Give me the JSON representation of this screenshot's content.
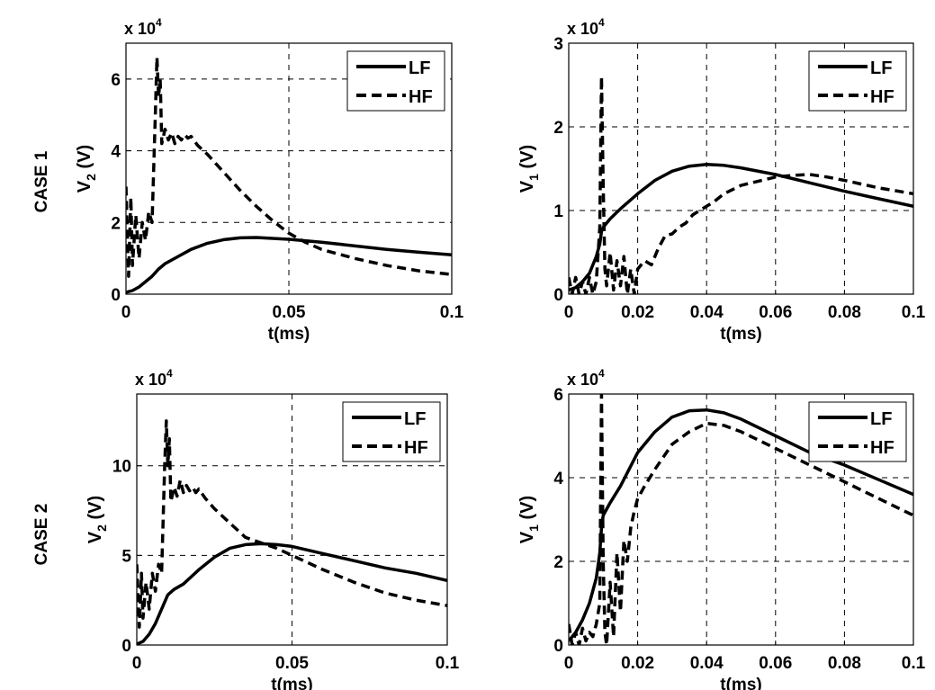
{
  "row_labels": [
    "CASE 1",
    "CASE 2"
  ],
  "chart_data": [
    {
      "type": "line",
      "row_label": "CASE 1",
      "ylabel": "V",
      "ylabel_sub": "2",
      "ylabel_unit": " (V)",
      "xlabel": "t(ms)",
      "multiplier": "x 10",
      "multiplier_exp": "4",
      "xlim": [
        0,
        0.1
      ],
      "ylim": [
        0,
        7
      ],
      "xticks": [
        0,
        0.05,
        0.1
      ],
      "xtick_labels": [
        "0",
        "0.05",
        "0.1"
      ],
      "yticks": [
        0,
        2,
        4,
        6
      ],
      "ytick_labels": [
        "0",
        "2",
        "4",
        "6"
      ],
      "grid": true,
      "legend": "top-right",
      "series": [
        {
          "name": "LF",
          "style": "solid",
          "x": [
            0,
            0.002,
            0.004,
            0.006,
            0.008,
            0.01,
            0.012,
            0.015,
            0.02,
            0.025,
            0.03,
            0.035,
            0.04,
            0.05,
            0.06,
            0.07,
            0.08,
            0.09,
            0.1
          ],
          "y": [
            0.05,
            0.1,
            0.2,
            0.35,
            0.5,
            0.7,
            0.85,
            1.0,
            1.25,
            1.42,
            1.52,
            1.57,
            1.58,
            1.53,
            1.45,
            1.35,
            1.25,
            1.17,
            1.1
          ]
        },
        {
          "name": "HF",
          "style": "dashed",
          "x": [
            0,
            0.0008,
            0.0015,
            0.002,
            0.003,
            0.004,
            0.005,
            0.006,
            0.007,
            0.008,
            0.0085,
            0.009,
            0.0095,
            0.01,
            0.0105,
            0.011,
            0.012,
            0.013,
            0.014,
            0.015,
            0.016,
            0.017,
            0.018,
            0.019,
            0.02,
            0.022,
            0.025,
            0.03,
            0.035,
            0.04,
            0.045,
            0.05,
            0.055,
            0.06,
            0.07,
            0.08,
            0.09,
            0.1
          ],
          "y": [
            3.0,
            0.5,
            2.7,
            0.8,
            2.2,
            1.0,
            2.0,
            1.5,
            2.3,
            2.0,
            3.5,
            5.0,
            6.6,
            5.5,
            6.0,
            4.2,
            4.6,
            4.3,
            4.5,
            4.2,
            4.4,
            4.3,
            4.45,
            4.35,
            4.4,
            4.15,
            3.9,
            3.4,
            2.9,
            2.45,
            2.05,
            1.7,
            1.45,
            1.25,
            1.0,
            0.8,
            0.65,
            0.55
          ]
        }
      ]
    },
    {
      "type": "line",
      "row_label": "CASE 1",
      "ylabel": "V",
      "ylabel_sub": "1",
      "ylabel_unit": " (V)",
      "xlabel": "t(ms)",
      "multiplier": "x 10",
      "multiplier_exp": "4",
      "xlim": [
        0,
        0.1
      ],
      "ylim": [
        0,
        3
      ],
      "xticks": [
        0,
        0.02,
        0.04,
        0.06,
        0.08,
        0.1
      ],
      "xtick_labels": [
        "0",
        "0.02",
        "0.04",
        "0.06",
        "0.08",
        "0.1"
      ],
      "yticks": [
        0,
        1,
        2,
        3
      ],
      "ytick_labels": [
        "0",
        "1",
        "2",
        "3"
      ],
      "grid": true,
      "legend": "top-right",
      "series": [
        {
          "name": "LF",
          "style": "solid",
          "x": [
            0,
            0.002,
            0.004,
            0.006,
            0.008,
            0.009,
            0.0095,
            0.01,
            0.012,
            0.015,
            0.02,
            0.025,
            0.03,
            0.035,
            0.04,
            0.045,
            0.05,
            0.06,
            0.07,
            0.08,
            0.09,
            0.1
          ],
          "y": [
            0.05,
            0.08,
            0.15,
            0.25,
            0.45,
            0.6,
            0.75,
            0.8,
            0.9,
            1.02,
            1.2,
            1.36,
            1.47,
            1.53,
            1.55,
            1.54,
            1.51,
            1.43,
            1.33,
            1.23,
            1.14,
            1.05
          ]
        },
        {
          "name": "HF",
          "style": "dashed",
          "x": [
            0,
            0.001,
            0.002,
            0.003,
            0.004,
            0.005,
            0.006,
            0.007,
            0.008,
            0.009,
            0.0095,
            0.01,
            0.0105,
            0.011,
            0.012,
            0.013,
            0.014,
            0.015,
            0.016,
            0.017,
            0.018,
            0.019,
            0.02,
            0.022,
            0.024,
            0.026,
            0.028,
            0.03,
            0.032,
            0.034,
            0.036,
            0.038,
            0.04,
            0.042,
            0.045,
            0.05,
            0.055,
            0.06,
            0.065,
            0.07,
            0.075,
            0.08,
            0.09,
            0.1
          ],
          "y": [
            0.2,
            0.0,
            0.2,
            0.0,
            0.15,
            0.0,
            0.2,
            0.0,
            0.15,
            0.8,
            2.6,
            1.3,
            0.3,
            0.1,
            0.5,
            0.05,
            0.4,
            0.1,
            0.45,
            0.0,
            0.3,
            0.0,
            0.3,
            0.4,
            0.35,
            0.55,
            0.7,
            0.72,
            0.8,
            0.85,
            0.95,
            1.0,
            1.05,
            1.1,
            1.2,
            1.3,
            1.35,
            1.4,
            1.42,
            1.43,
            1.4,
            1.36,
            1.27,
            1.2
          ]
        }
      ]
    },
    {
      "type": "line",
      "row_label": "CASE 2",
      "ylabel": "V",
      "ylabel_sub": "2",
      "ylabel_unit": " (V)",
      "xlabel": "t(ms)",
      "multiplier": "x 10",
      "multiplier_exp": "4",
      "xlim": [
        0,
        0.1
      ],
      "ylim": [
        0,
        14
      ],
      "xticks": [
        0,
        0.05,
        0.1
      ],
      "xtick_labels": [
        "0",
        "0.05",
        "0.1"
      ],
      "yticks": [
        0,
        5,
        10
      ],
      "ytick_labels": [
        "0",
        "5",
        "10"
      ],
      "grid": true,
      "legend": "top-right",
      "series": [
        {
          "name": "LF",
          "style": "solid",
          "x": [
            0,
            0.002,
            0.004,
            0.006,
            0.008,
            0.01,
            0.012,
            0.015,
            0.02,
            0.025,
            0.03,
            0.035,
            0.04,
            0.045,
            0.05,
            0.06,
            0.07,
            0.08,
            0.09,
            0.1
          ],
          "y": [
            0.05,
            0.2,
            0.6,
            1.2,
            2.0,
            2.8,
            3.1,
            3.4,
            4.2,
            4.9,
            5.4,
            5.6,
            5.65,
            5.6,
            5.5,
            5.1,
            4.7,
            4.3,
            4.0,
            3.6
          ]
        },
        {
          "name": "HF",
          "style": "dashed",
          "x": [
            0,
            0.0008,
            0.0015,
            0.002,
            0.003,
            0.004,
            0.005,
            0.006,
            0.007,
            0.008,
            0.0085,
            0.009,
            0.0095,
            0.01,
            0.0105,
            0.011,
            0.012,
            0.013,
            0.014,
            0.015,
            0.016,
            0.017,
            0.018,
            0.019,
            0.02,
            0.022,
            0.025,
            0.03,
            0.035,
            0.04,
            0.045,
            0.05,
            0.055,
            0.06,
            0.07,
            0.08,
            0.09,
            0.1
          ],
          "y": [
            4.5,
            1.0,
            4.0,
            1.5,
            3.5,
            2.0,
            4.0,
            3.0,
            4.5,
            4.0,
            7.0,
            10.0,
            12.5,
            10.0,
            11.5,
            8.0,
            8.8,
            8.3,
            9.2,
            8.5,
            8.9,
            8.6,
            8.8,
            8.5,
            8.7,
            8.2,
            7.6,
            6.8,
            6.0,
            5.7,
            5.4,
            5.0,
            4.6,
            4.2,
            3.5,
            2.9,
            2.5,
            2.2
          ]
        }
      ]
    },
    {
      "type": "line",
      "row_label": "CASE 2",
      "ylabel": "V",
      "ylabel_sub": "1",
      "ylabel_unit": " (V)",
      "xlabel": "t(ms)",
      "multiplier": "x 10",
      "multiplier_exp": "4",
      "xlim": [
        0,
        0.1
      ],
      "ylim": [
        0,
        6
      ],
      "xticks": [
        0,
        0.02,
        0.04,
        0.06,
        0.08,
        0.1
      ],
      "xtick_labels": [
        "0",
        "0.02",
        "0.04",
        "0.06",
        "0.08",
        "0.1"
      ],
      "yticks": [
        0,
        2,
        4,
        6
      ],
      "ytick_labels": [
        "0",
        "2",
        "4",
        "6"
      ],
      "grid": true,
      "legend": "top-right",
      "series": [
        {
          "name": "LF",
          "style": "solid",
          "x": [
            0,
            0.002,
            0.004,
            0.006,
            0.008,
            0.009,
            0.0095,
            0.01,
            0.012,
            0.015,
            0.02,
            0.025,
            0.03,
            0.035,
            0.04,
            0.045,
            0.05,
            0.06,
            0.07,
            0.08,
            0.09,
            0.1
          ],
          "y": [
            0.1,
            0.3,
            0.6,
            1.0,
            1.6,
            2.2,
            2.8,
            3.1,
            3.4,
            3.8,
            4.6,
            5.1,
            5.45,
            5.6,
            5.62,
            5.55,
            5.4,
            5.0,
            4.6,
            4.3,
            3.95,
            3.6
          ]
        },
        {
          "name": "HF",
          "style": "dashed",
          "x": [
            0,
            0.001,
            0.002,
            0.003,
            0.004,
            0.005,
            0.006,
            0.007,
            0.008,
            0.009,
            0.0095,
            0.01,
            0.0105,
            0.011,
            0.012,
            0.013,
            0.014,
            0.015,
            0.016,
            0.017,
            0.018,
            0.019,
            0.02,
            0.022,
            0.025,
            0.03,
            0.035,
            0.04,
            0.045,
            0.05,
            0.06,
            0.07,
            0.08,
            0.09,
            0.1
          ],
          "y": [
            0.5,
            0.0,
            0.3,
            0.0,
            0.4,
            0.1,
            0.3,
            0.2,
            0.5,
            1.0,
            6.0,
            2.0,
            0.3,
            0.0,
            1.5,
            0.2,
            2.2,
            0.8,
            2.5,
            2.0,
            2.8,
            3.2,
            3.5,
            3.8,
            4.2,
            4.8,
            5.1,
            5.3,
            5.25,
            5.1,
            4.7,
            4.3,
            3.9,
            3.5,
            3.1
          ]
        }
      ]
    }
  ]
}
